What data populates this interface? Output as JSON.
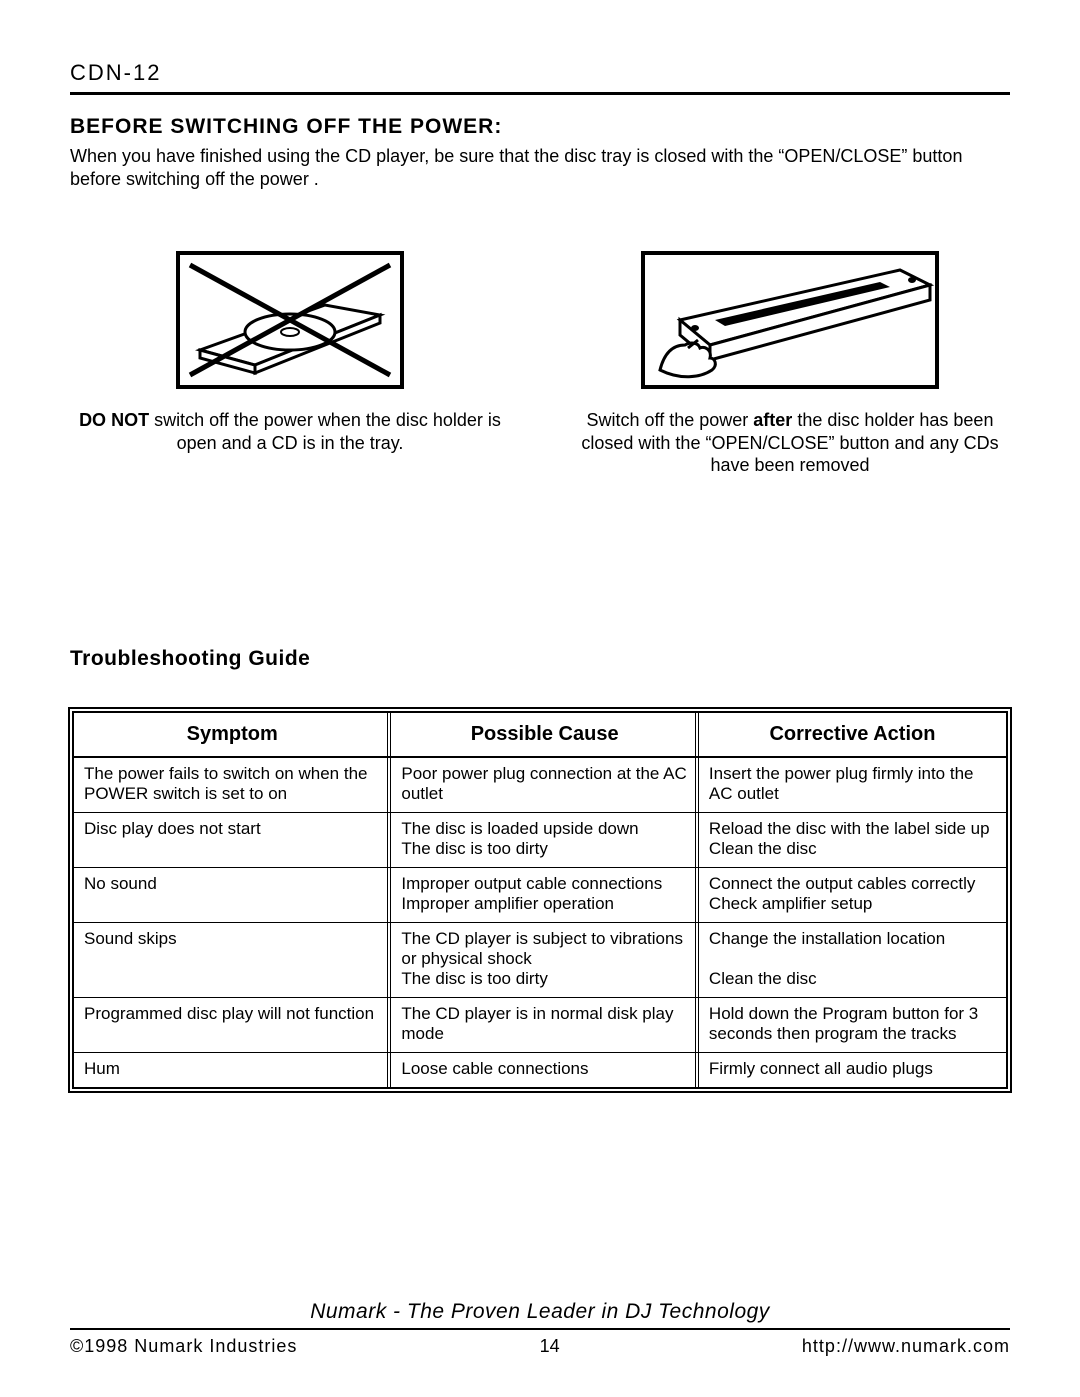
{
  "header": {
    "model": "CDN-12"
  },
  "section1": {
    "title": "BEFORE SWITCHING OFF THE POWER:",
    "intro": "When you have finished using the CD player, be sure that the disc tray is closed with the “OPEN/CLOSE” button before switching off the power .",
    "fig_left": {
      "bold": "DO NOT",
      "rest": " switch off the power when the disc holder is open and a CD is in the tray."
    },
    "fig_right": {
      "pre": "Switch off the power ",
      "bold": "after",
      "post": " the disc holder has been closed with the “OPEN/CLOSE” button and any CDs have been removed"
    }
  },
  "section2": {
    "title": "Troubleshooting Guide",
    "columns": [
      "Symptom",
      "Possible Cause",
      "Corrective Action"
    ],
    "rows": [
      [
        "The power fails to switch on when the POWER switch is set to on",
        "Poor power plug connection at the AC outlet",
        "Insert the power plug firmly into the AC outlet"
      ],
      [
        "Disc play does not start",
        "The disc is loaded upside down\nThe disc is too dirty",
        "Reload the disc with the label side up\nClean the disc"
      ],
      [
        "No sound",
        "Improper output cable connections\nImproper amplifier operation",
        "Connect the output cables correctly\nCheck amplifier setup"
      ],
      [
        "Sound skips",
        "The CD player is subject to vibrations or physical shock\nThe disc is too dirty",
        "Change the installation location\n\nClean the disc"
      ],
      [
        "Programmed disc play will not function",
        "The CD player is in normal disk play mode",
        "Hold down the Program button for 3 seconds then program the tracks"
      ],
      [
        "Hum",
        "Loose cable connections",
        "Firmly connect all audio plugs"
      ]
    ]
  },
  "footer": {
    "tagline": "Numark - The Proven Leader in DJ Technology",
    "copyright": "©1998 Numark Industries",
    "page": "14",
    "url": "http://www.numark.com"
  },
  "style": {
    "col_widths": [
      "34%",
      "33%",
      "33%"
    ]
  }
}
